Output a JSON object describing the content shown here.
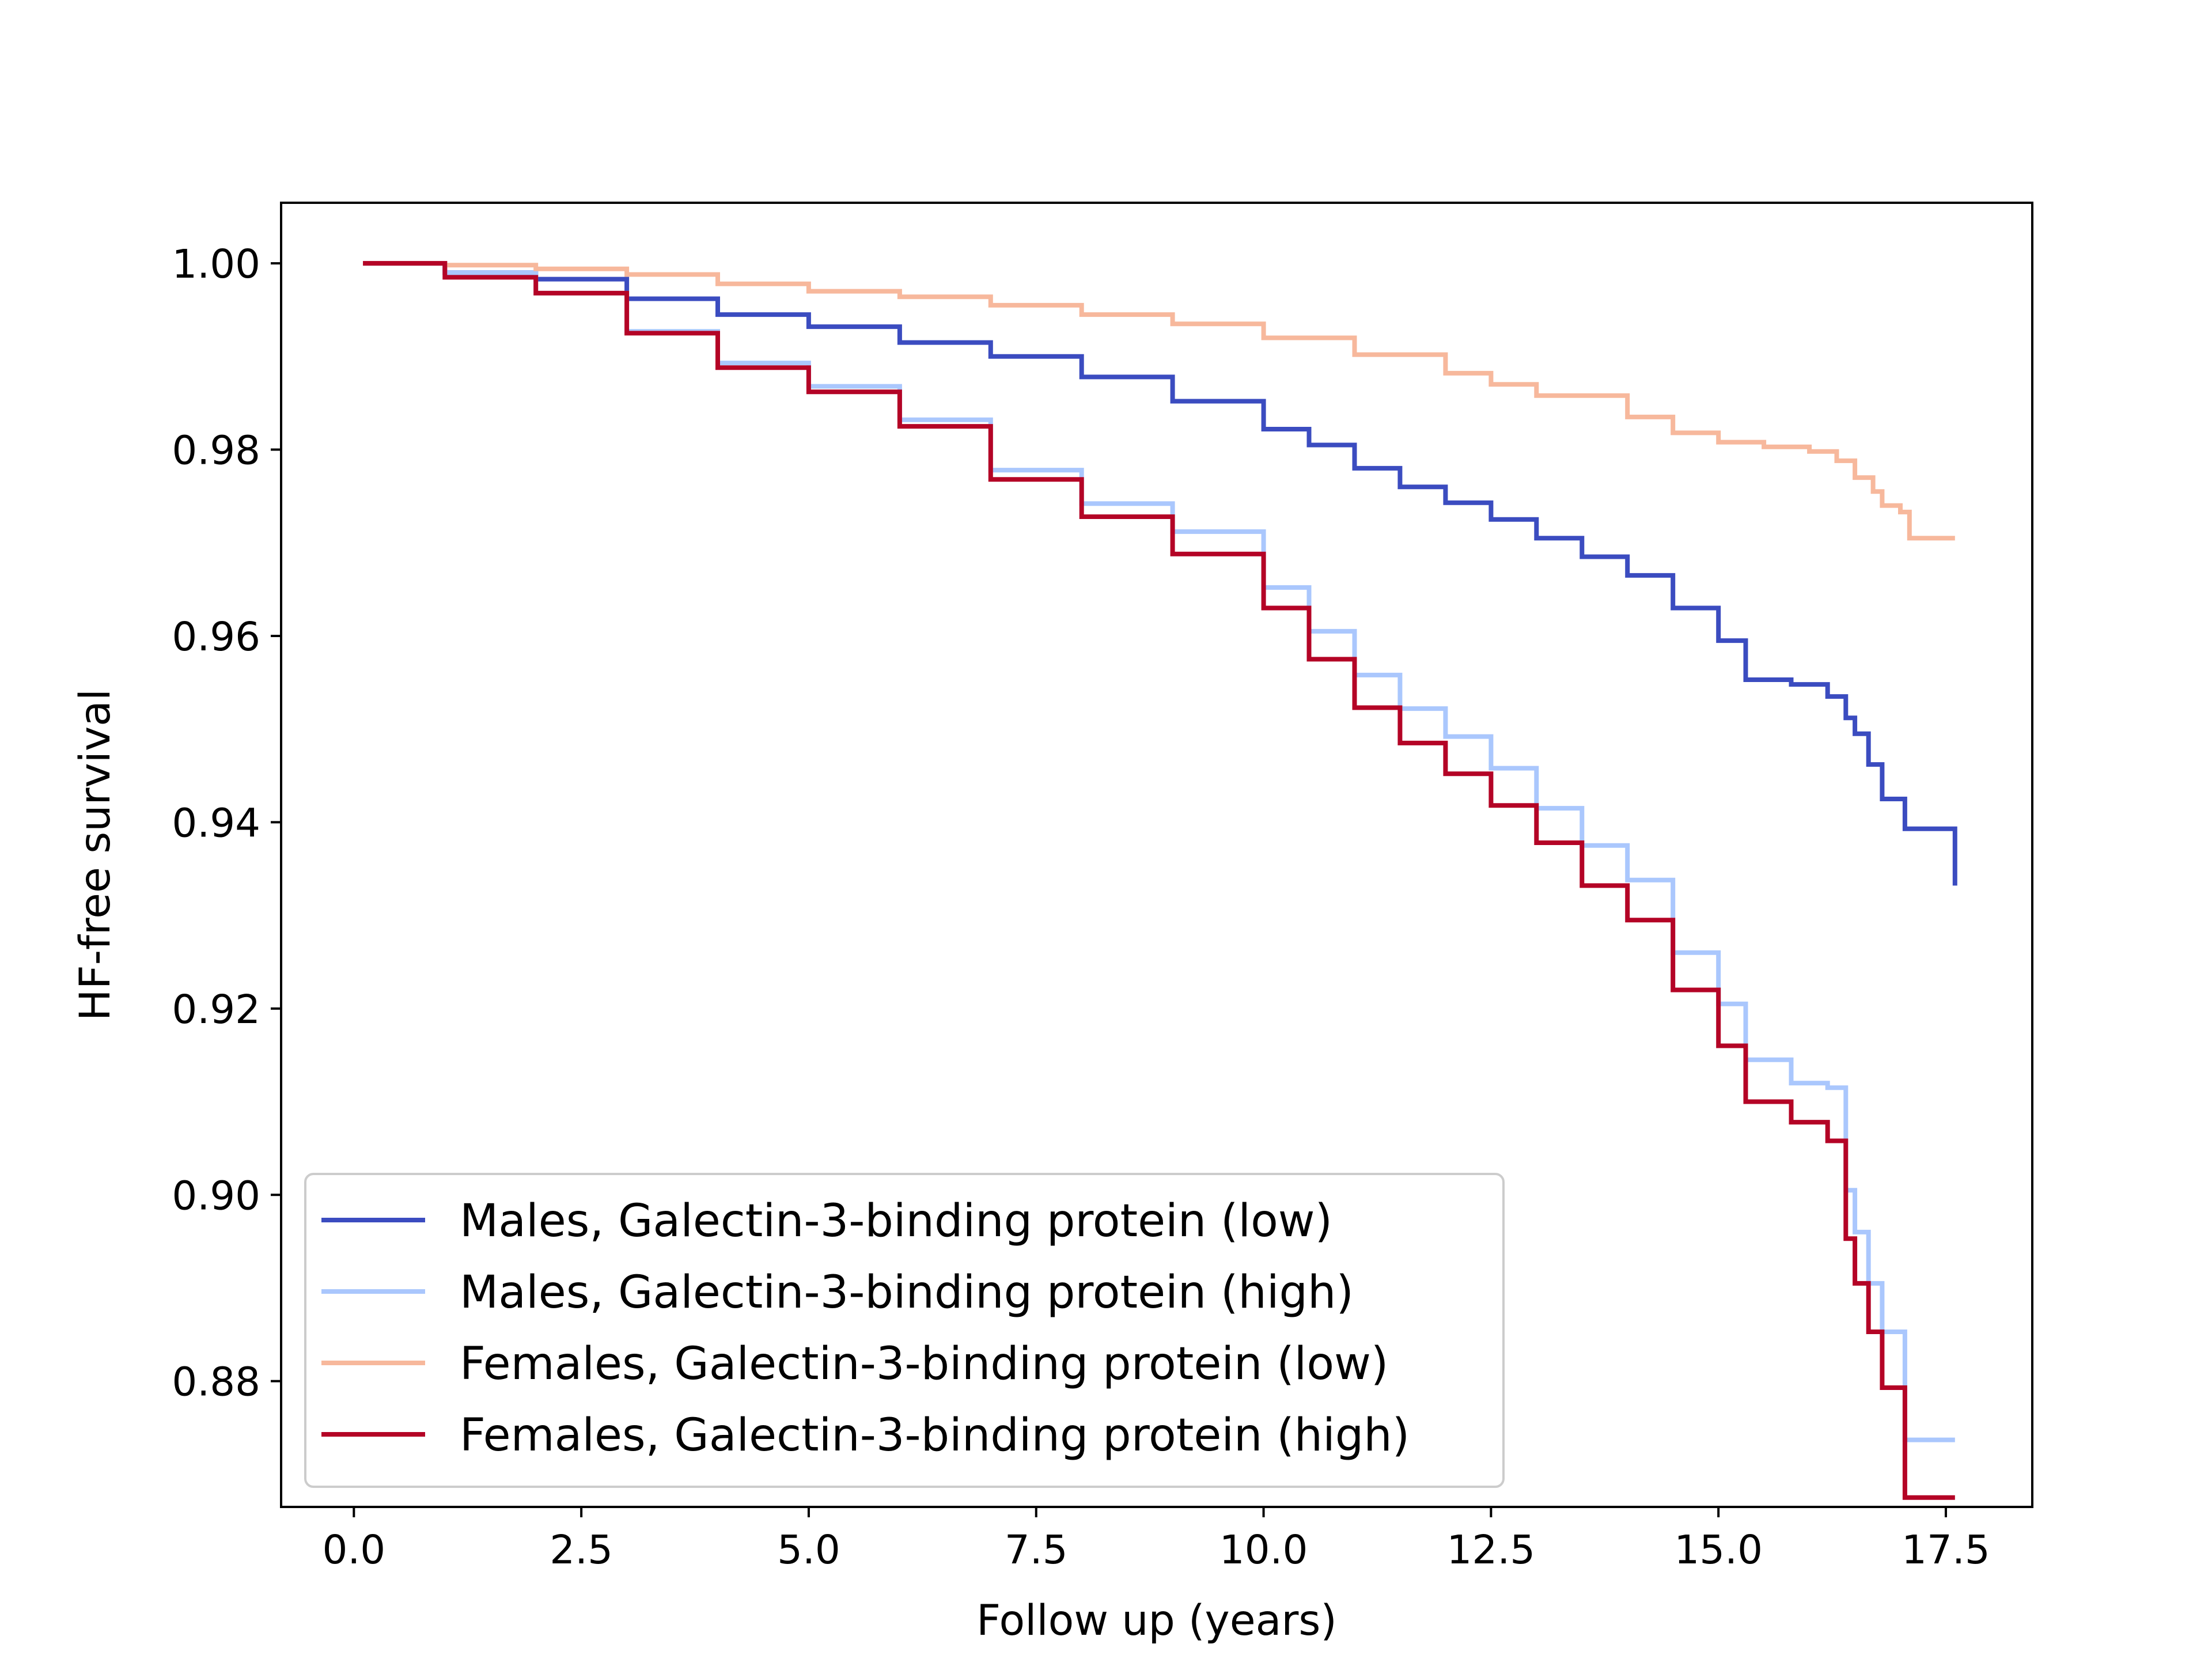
{
  "chart_data": {
    "type": "line",
    "xlabel": "Follow up (years)",
    "ylabel": "HF-free survival",
    "xlim": [
      -0.8,
      18.45
    ],
    "ylim": [
      0.8665,
      1.0065
    ],
    "xticks": [
      0.0,
      2.5,
      5.0,
      7.5,
      10.0,
      12.5,
      15.0,
      17.5
    ],
    "xtick_labels": [
      "0.0",
      "2.5",
      "5.0",
      "7.5",
      "10.0",
      "12.5",
      "15.0",
      "17.5"
    ],
    "yticks": [
      0.88,
      0.9,
      0.92,
      0.94,
      0.96,
      0.98,
      1.0
    ],
    "ytick_labels": [
      "0.88",
      "0.90",
      "0.92",
      "0.94",
      "0.96",
      "0.98",
      "1.00"
    ],
    "grid": false,
    "legend_position": "lower-left",
    "series": [
      {
        "name": "Males, Galectin-3-binding protein (low)",
        "color": "#3b4cc0",
        "x": [
          0.1,
          1.0,
          2.0,
          3.0,
          4.0,
          5.0,
          6.0,
          7.0,
          8.0,
          9.0,
          10.0,
          10.5,
          11.0,
          11.5,
          12.0,
          12.5,
          13.0,
          13.5,
          14.0,
          14.5,
          15.0,
          15.3,
          15.8,
          16.2,
          16.4,
          16.5,
          16.65,
          16.8,
          17.05,
          17.6
        ],
        "y": [
          1.0,
          0.999,
          0.9983,
          0.9962,
          0.9945,
          0.9932,
          0.9915,
          0.99,
          0.9878,
          0.9852,
          0.9822,
          0.9805,
          0.978,
          0.976,
          0.9743,
          0.9725,
          0.9705,
          0.9685,
          0.9665,
          0.963,
          0.9595,
          0.9553,
          0.9548,
          0.9535,
          0.9512,
          0.9495,
          0.9462,
          0.9425,
          0.9393,
          0.9332
        ]
      },
      {
        "name": "Males, Galectin-3-binding protein (high)",
        "color": "#aac7fd",
        "x": [
          0.1,
          1.0,
          2.0,
          3.0,
          4.0,
          5.0,
          6.0,
          7.0,
          8.0,
          9.0,
          10.0,
          10.5,
          11.0,
          11.5,
          12.0,
          12.5,
          13.0,
          13.5,
          14.0,
          14.5,
          15.0,
          15.3,
          15.8,
          16.2,
          16.4,
          16.5,
          16.65,
          16.8,
          17.05,
          17.6
        ],
        "y": [
          1.0,
          0.999,
          0.9968,
          0.9927,
          0.9893,
          0.9868,
          0.9832,
          0.9778,
          0.9742,
          0.9712,
          0.9652,
          0.9605,
          0.9558,
          0.9522,
          0.9492,
          0.9458,
          0.9415,
          0.9375,
          0.9338,
          0.926,
          0.9205,
          0.9145,
          0.912,
          0.9115,
          0.9005,
          0.896,
          0.8905,
          0.8853,
          0.8737,
          0.8737
        ]
      },
      {
        "name": "Females, Galectin-3-binding protein (low)",
        "color": "#f7b89c",
        "x": [
          0.1,
          1.0,
          2.0,
          3.0,
          4.0,
          5.0,
          6.0,
          7.0,
          8.0,
          9.0,
          10.0,
          11.0,
          12.0,
          12.5,
          13.0,
          14.0,
          14.5,
          15.0,
          15.5,
          16.0,
          16.3,
          16.5,
          16.7,
          16.8,
          17.0,
          17.1,
          17.6
        ],
        "y": [
          1.0,
          0.9998,
          0.9994,
          0.9988,
          0.9978,
          0.997,
          0.9964,
          0.9955,
          0.9945,
          0.9935,
          0.992,
          0.9902,
          0.9882,
          0.987,
          0.9858,
          0.9835,
          0.9818,
          0.9808,
          0.9803,
          0.9798,
          0.9788,
          0.977,
          0.9755,
          0.974,
          0.9733,
          0.9705,
          0.9705
        ]
      },
      {
        "name": "Females, Galectin-3-binding protein (high)",
        "color": "#b40426",
        "x": [
          0.1,
          1.0,
          2.0,
          3.0,
          4.0,
          5.0,
          6.0,
          7.0,
          8.0,
          9.0,
          10.0,
          10.5,
          11.0,
          11.5,
          12.0,
          12.5,
          13.0,
          13.5,
          14.0,
          14.5,
          15.0,
          15.3,
          15.8,
          16.2,
          16.4,
          16.5,
          16.65,
          16.8,
          17.05,
          17.6
        ],
        "y": [
          1.0,
          0.9985,
          0.9968,
          0.9925,
          0.9888,
          0.9862,
          0.9825,
          0.9768,
          0.9728,
          0.9688,
          0.963,
          0.9575,
          0.9523,
          0.9485,
          0.9452,
          0.9418,
          0.9378,
          0.9332,
          0.9295,
          0.922,
          0.916,
          0.91,
          0.9078,
          0.9058,
          0.8953,
          0.8905,
          0.8853,
          0.8793,
          0.8675,
          0.8675
        ]
      }
    ]
  }
}
